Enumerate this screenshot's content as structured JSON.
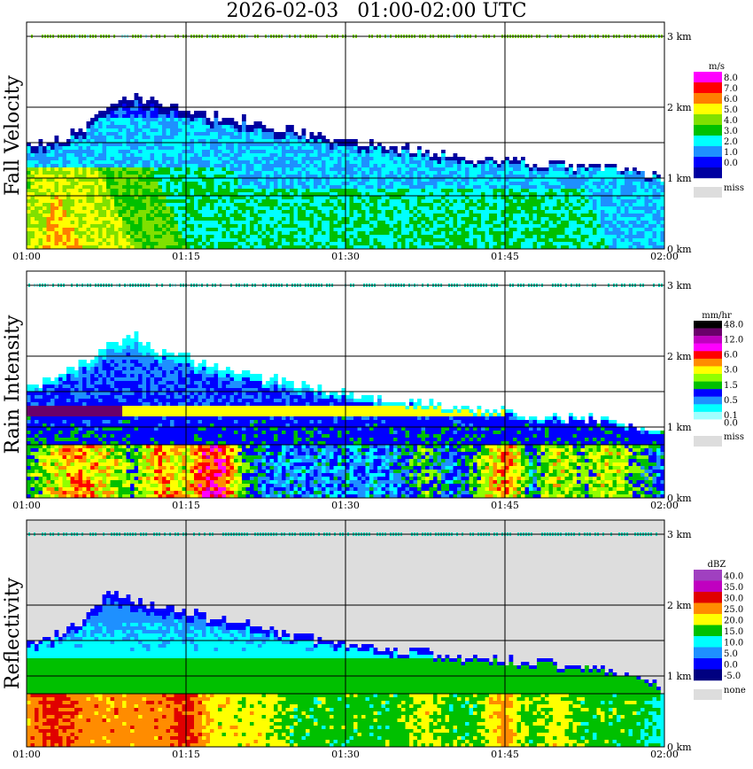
{
  "title": "2026-02-03   01:00-02:00 UTC",
  "chart_data": [
    {
      "type": "heatmap",
      "ylabel": "Fall Velocity",
      "x_ticks": [
        "01:00",
        "01:15",
        "01:30",
        "01:45",
        "02:00"
      ],
      "y_ticks": [
        "0 km",
        "1 km",
        "2 km",
        "3 km"
      ],
      "x_range": [
        "01:00",
        "02:00"
      ],
      "y_range_km": [
        0,
        3.2
      ],
      "grid": true,
      "legend": {
        "unit": "m/s",
        "placement": "right",
        "items": [
          {
            "label": "8.0",
            "color": "#ff00ff"
          },
          {
            "label": "7.0",
            "color": "#ff0000"
          },
          {
            "label": "6.0",
            "color": "#ff7f00"
          },
          {
            "label": "5.0",
            "color": "#ffff00"
          },
          {
            "label": "4.0",
            "color": "#80e000"
          },
          {
            "label": "3.0",
            "color": "#00c000"
          },
          {
            "label": "2.0",
            "color": "#00ffff"
          },
          {
            "label": "1.0",
            "color": "#1e90ff"
          },
          {
            "label": "0.0",
            "color": "#0000ff"
          },
          {
            "label": "",
            "color": "#0000a0"
          }
        ],
        "miss": {
          "label": "miss",
          "color": "#dddddd"
        }
      },
      "echo_top_km": [
        1.5,
        1.55,
        1.7,
        2.0,
        2.2,
        2.1,
        2.0,
        1.9,
        1.85,
        1.75,
        1.7,
        1.6,
        1.55,
        1.5,
        1.45,
        1.4,
        1.35,
        1.3,
        1.28,
        1.25,
        1.22,
        1.18,
        1.15,
        1.12,
        1.05
      ],
      "near_surface_fall_velocity_ms": [
        4.0,
        5.0,
        4.5,
        4.0,
        3.5,
        3.0,
        2.5,
        2.5,
        2.0,
        2.0,
        2.0,
        2.0,
        2.0,
        2.0,
        2.0,
        2.0,
        2.0,
        2.0,
        2.0,
        2.0,
        2.0,
        2.0,
        1.5,
        1.5,
        1.5
      ],
      "background": "#ffffff"
    },
    {
      "type": "heatmap",
      "ylabel": "Rain Intensity",
      "x_ticks": [
        "01:00",
        "01:15",
        "01:30",
        "01:45",
        "02:00"
      ],
      "y_ticks": [
        "0 km",
        "1 km",
        "2 km",
        "3 km"
      ],
      "x_range": [
        "01:00",
        "02:00"
      ],
      "y_range_km": [
        0,
        3.2
      ],
      "grid": true,
      "legend": {
        "unit": "mm/hr",
        "placement": "right",
        "items": [
          {
            "label": "48.0",
            "color": "#000000"
          },
          {
            "label": "",
            "color": "#6a006a"
          },
          {
            "label": "12.0",
            "color": "#c000c0"
          },
          {
            "label": "",
            "color": "#ff00ff"
          },
          {
            "label": "6.0",
            "color": "#ff0000"
          },
          {
            "label": "",
            "color": "#ff8c00"
          },
          {
            "label": "3.0",
            "color": "#ffff00"
          },
          {
            "label": "",
            "color": "#90ff00"
          },
          {
            "label": "1.5",
            "color": "#00c000"
          },
          {
            "label": "",
            "color": "#0000ff"
          },
          {
            "label": "0.5",
            "color": "#1e90ff"
          },
          {
            "label": "",
            "color": "#00ffff"
          },
          {
            "label": "0.1",
            "color": "#a0ffff"
          },
          {
            "label": "0.0",
            "color": "#ffffff"
          }
        ],
        "miss": {
          "label": "miss",
          "color": "#dddddd"
        }
      },
      "echo_top_km": [
        1.6,
        1.7,
        1.9,
        2.2,
        2.3,
        2.1,
        2.0,
        1.9,
        1.8,
        1.7,
        1.65,
        1.55,
        1.5,
        1.45,
        1.4,
        1.35,
        1.3,
        1.28,
        1.25,
        1.2,
        1.18,
        1.15,
        1.1,
        1.05,
        1.0
      ],
      "near_surface_rain_mmhr": [
        1.5,
        3.0,
        6.0,
        3.0,
        1.5,
        6.0,
        3.0,
        12.0,
        1.5,
        0.5,
        0.5,
        0.5,
        0.5,
        0.5,
        0.5,
        1.5,
        0.5,
        1.5,
        6.0,
        0.5,
        3.0,
        1.5,
        3.0,
        1.5,
        0.5
      ],
      "background": "#ffffff"
    },
    {
      "type": "heatmap",
      "ylabel": "Reflectivity",
      "x_ticks": [
        "01:00",
        "01:15",
        "01:30",
        "01:45",
        "02:00"
      ],
      "y_ticks": [
        "0 km",
        "1 km",
        "2 km",
        "3 km"
      ],
      "x_range": [
        "01:00",
        "02:00"
      ],
      "y_range_km": [
        0,
        3.2
      ],
      "grid": true,
      "legend": {
        "unit": "dBZ",
        "placement": "right",
        "items": [
          {
            "label": "40.0",
            "color": "#a040c0"
          },
          {
            "label": "35.0",
            "color": "#c000c0"
          },
          {
            "label": "30.0",
            "color": "#e00000"
          },
          {
            "label": "25.0",
            "color": "#ff8c00"
          },
          {
            "label": "20.0",
            "color": "#ffff00"
          },
          {
            "label": "15.0",
            "color": "#00c000"
          },
          {
            "label": "10.0",
            "color": "#00ffff"
          },
          {
            "label": "5.0",
            "color": "#1e90ff"
          },
          {
            "label": "0.0",
            "color": "#0000ff"
          },
          {
            "label": "-5.0",
            "color": "#000080"
          }
        ],
        "miss": {
          "label": "none",
          "color": "#dddddd"
        }
      },
      "echo_top_km": [
        1.5,
        1.6,
        1.8,
        2.2,
        2.1,
        2.0,
        1.95,
        1.85,
        1.8,
        1.7,
        1.6,
        1.55,
        1.5,
        1.45,
        1.4,
        1.35,
        1.3,
        1.28,
        1.25,
        1.2,
        1.18,
        1.15,
        1.1,
        1.05,
        0.85
      ],
      "near_surface_reflectivity_dbz": [
        25,
        30,
        25,
        25,
        25,
        25,
        30,
        20,
        20,
        20,
        15,
        15,
        15,
        15,
        15,
        20,
        15,
        15,
        25,
        15,
        20,
        15,
        15,
        15,
        10
      ],
      "background": "#dddddd"
    }
  ]
}
